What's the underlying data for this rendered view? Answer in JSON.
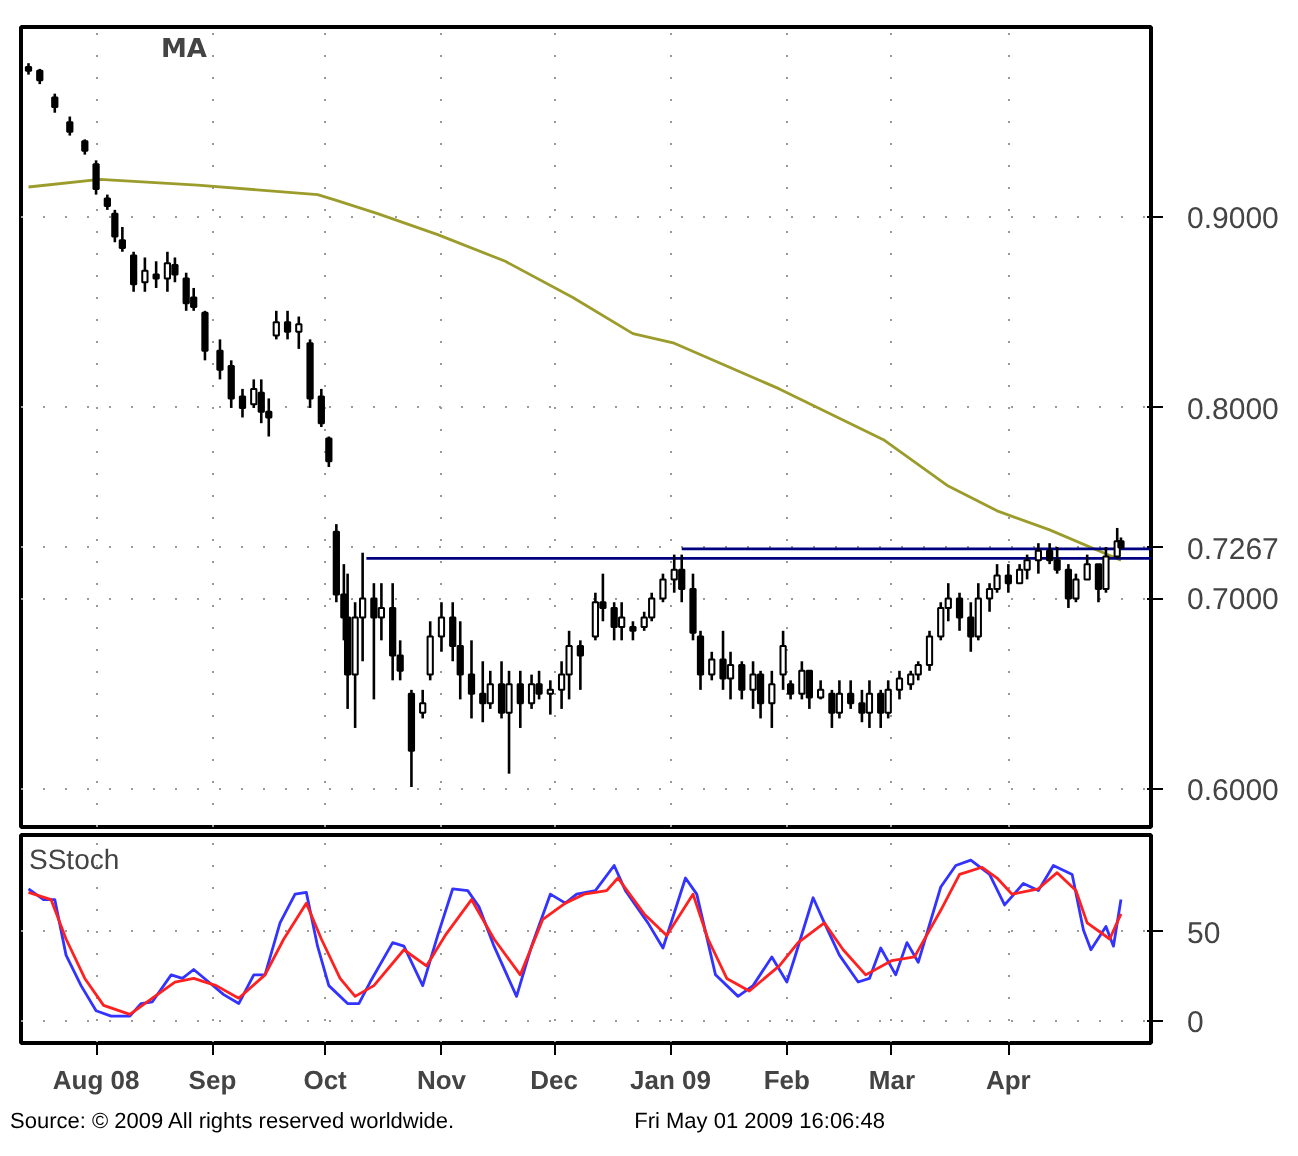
{
  "chart_data": [
    {
      "type": "candlestick",
      "annotations": [
        "MA"
      ],
      "xlim": [
        "2008-07-12",
        "2009-05-09"
      ],
      "xticks": [
        {
          "value": "2008-08-01",
          "label": null
        },
        {
          "value": "2008-09-01",
          "label": null
        },
        {
          "value": "2008-10-01",
          "label": null
        },
        {
          "value": "2008-11-01",
          "label": null
        },
        {
          "value": "2008-12-01",
          "label": null
        },
        {
          "value": "2009-01-01",
          "label": null
        },
        {
          "value": "2009-02-01",
          "label": null
        },
        {
          "value": "2009-03-01",
          "label": null
        },
        {
          "value": "2009-04-01",
          "label": null
        }
      ],
      "ylim": [
        0.58,
        1.0
      ],
      "yticks": [
        {
          "value": 0.6,
          "label": "0.6000"
        },
        {
          "value": 0.7,
          "label": "0.7000"
        },
        {
          "value": 0.7267,
          "label": "0.7267"
        },
        {
          "value": 0.8,
          "label": "0.8000"
        },
        {
          "value": 0.9,
          "label": "0.9000"
        }
      ],
      "tick_labels": "y",
      "grid": true,
      "color": "#000000",
      "x": [
        "2008-07-14",
        "2008-07-17",
        "2008-07-21",
        "2008-07-25",
        "2008-07-29",
        "2008-08-01",
        "2008-08-04",
        "2008-08-06",
        "2008-08-08",
        "2008-08-11",
        "2008-08-14",
        "2008-08-17",
        "2008-08-20",
        "2008-08-22",
        "2008-08-25",
        "2008-08-27",
        "2008-08-30",
        "2008-09-03",
        "2008-09-06",
        "2008-09-09",
        "2008-09-12",
        "2008-09-14",
        "2008-09-16",
        "2008-09-18",
        "2008-09-21",
        "2008-09-24",
        "2008-09-27",
        "2008-09-30",
        "2008-10-02",
        "2008-10-04",
        "2008-10-06",
        "2008-10-07",
        "2008-10-09",
        "2008-10-11",
        "2008-10-14",
        "2008-10-16",
        "2008-10-19",
        "2008-10-21",
        "2008-10-24",
        "2008-10-27",
        "2008-10-29",
        "2008-11-01",
        "2008-11-04",
        "2008-11-06",
        "2008-11-09",
        "2008-11-12",
        "2008-11-14",
        "2008-11-17",
        "2008-11-19",
        "2008-11-22",
        "2008-11-25",
        "2008-11-27",
        "2008-11-30",
        "2008-12-03",
        "2008-12-05",
        "2008-12-08",
        "2008-12-12",
        "2008-12-14",
        "2008-12-17",
        "2008-12-19",
        "2008-12-22",
        "2008-12-25",
        "2008-12-27",
        "2008-12-30",
        "2009-01-02",
        "2009-01-04",
        "2009-01-07",
        "2009-01-09",
        "2009-01-12",
        "2009-01-15",
        "2009-01-17",
        "2009-01-20",
        "2009-01-23",
        "2009-01-25",
        "2009-01-28",
        "2009-01-31",
        "2009-02-02",
        "2009-02-05",
        "2009-02-07",
        "2009-02-10",
        "2009-02-13",
        "2009-02-15",
        "2009-02-18",
        "2009-02-21",
        "2009-02-23",
        "2009-02-26",
        "2009-02-28",
        "2009-03-03",
        "2009-03-06",
        "2009-03-08",
        "2009-03-11",
        "2009-03-14",
        "2009-03-16",
        "2009-03-19",
        "2009-03-22",
        "2009-03-24",
        "2009-03-27",
        "2009-03-29",
        "2009-04-01",
        "2009-04-04",
        "2009-04-06",
        "2009-04-09",
        "2009-04-12",
        "2009-04-14",
        "2009-04-17",
        "2009-04-19",
        "2009-04-22",
        "2009-04-25",
        "2009-04-27",
        "2009-04-30",
        "2009-05-01"
      ],
      "ohlc": [
        [
          0.979,
          0.981,
          0.975,
          0.977
        ],
        [
          0.977,
          0.978,
          0.97,
          0.972
        ],
        [
          0.963,
          0.965,
          0.955,
          0.958
        ],
        [
          0.95,
          0.953,
          0.943,
          0.945
        ],
        [
          0.94,
          0.941,
          0.933,
          0.935
        ],
        [
          0.928,
          0.93,
          0.912,
          0.915
        ],
        [
          0.91,
          0.912,
          0.904,
          0.906
        ],
        [
          0.902,
          0.904,
          0.887,
          0.89
        ],
        [
          0.888,
          0.895,
          0.882,
          0.884
        ],
        [
          0.88,
          0.882,
          0.861,
          0.865
        ],
        [
          0.866,
          0.879,
          0.861,
          0.872
        ],
        [
          0.87,
          0.877,
          0.863,
          0.868
        ],
        [
          0.868,
          0.882,
          0.861,
          0.876
        ],
        [
          0.875,
          0.879,
          0.866,
          0.87
        ],
        [
          0.868,
          0.871,
          0.851,
          0.855
        ],
        [
          0.858,
          0.863,
          0.851,
          0.853
        ],
        [
          0.85,
          0.851,
          0.825,
          0.83
        ],
        [
          0.83,
          0.836,
          0.815,
          0.82
        ],
        [
          0.822,
          0.825,
          0.8,
          0.805
        ],
        [
          0.806,
          0.81,
          0.795,
          0.8
        ],
        [
          0.802,
          0.815,
          0.8,
          0.81
        ],
        [
          0.808,
          0.815,
          0.792,
          0.798
        ],
        [
          0.798,
          0.805,
          0.785,
          0.795
        ],
        [
          0.838,
          0.851,
          0.836,
          0.845
        ],
        [
          0.845,
          0.851,
          0.836,
          0.84
        ],
        [
          0.84,
          0.848,
          0.831,
          0.844
        ],
        [
          0.834,
          0.836,
          0.8,
          0.805
        ],
        [
          0.806,
          0.81,
          0.79,
          0.792
        ],
        [
          0.784,
          0.785,
          0.769,
          0.772
        ],
        [
          0.735,
          0.739,
          0.698,
          0.702
        ],
        [
          0.702,
          0.718,
          0.678,
          0.69
        ],
        [
          0.69,
          0.713,
          0.642,
          0.66
        ],
        [
          0.66,
          0.698,
          0.632,
          0.69
        ],
        [
          0.69,
          0.724,
          0.667,
          0.7
        ],
        [
          0.7,
          0.708,
          0.647,
          0.69
        ],
        [
          0.69,
          0.708,
          0.678,
          0.695
        ],
        [
          0.695,
          0.708,
          0.657,
          0.67
        ],
        [
          0.67,
          0.678,
          0.657,
          0.662
        ],
        [
          0.65,
          0.652,
          0.601,
          0.62
        ],
        [
          0.64,
          0.652,
          0.637,
          0.645
        ],
        [
          0.66,
          0.688,
          0.657,
          0.68
        ],
        [
          0.68,
          0.698,
          0.672,
          0.69
        ],
        [
          0.69,
          0.698,
          0.667,
          0.675
        ],
        [
          0.675,
          0.688,
          0.647,
          0.66
        ],
        [
          0.66,
          0.678,
          0.637,
          0.65
        ],
        [
          0.65,
          0.667,
          0.635,
          0.645
        ],
        [
          0.645,
          0.662,
          0.642,
          0.655
        ],
        [
          0.655,
          0.667,
          0.637,
          0.64
        ],
        [
          0.64,
          0.662,
          0.608,
          0.655
        ],
        [
          0.655,
          0.662,
          0.632,
          0.645
        ],
        [
          0.645,
          0.66,
          0.642,
          0.655
        ],
        [
          0.655,
          0.662,
          0.647,
          0.65
        ],
        [
          0.65,
          0.657,
          0.639,
          0.652
        ],
        [
          0.652,
          0.667,
          0.642,
          0.66
        ],
        [
          0.66,
          0.683,
          0.647,
          0.675
        ],
        [
          0.675,
          0.678,
          0.652,
          0.67
        ],
        [
          0.68,
          0.703,
          0.678,
          0.698
        ],
        [
          0.698,
          0.713,
          0.688,
          0.695
        ],
        [
          0.695,
          0.698,
          0.678,
          0.685
        ],
        [
          0.685,
          0.698,
          0.678,
          0.69
        ],
        [
          0.685,
          0.688,
          0.678,
          0.683
        ],
        [
          0.685,
          0.693,
          0.683,
          0.69
        ],
        [
          0.69,
          0.703,
          0.688,
          0.7
        ],
        [
          0.7,
          0.713,
          0.698,
          0.71
        ],
        [
          0.71,
          0.723,
          0.703,
          0.715
        ],
        [
          0.715,
          0.723,
          0.698,
          0.705
        ],
        [
          0.705,
          0.713,
          0.678,
          0.682
        ],
        [
          0.68,
          0.683,
          0.652,
          0.66
        ],
        [
          0.66,
          0.672,
          0.657,
          0.668
        ],
        [
          0.668,
          0.683,
          0.652,
          0.658
        ],
        [
          0.658,
          0.672,
          0.647,
          0.665
        ],
        [
          0.665,
          0.667,
          0.647,
          0.652
        ],
        [
          0.652,
          0.667,
          0.642,
          0.66
        ],
        [
          0.66,
          0.662,
          0.637,
          0.645
        ],
        [
          0.645,
          0.662,
          0.632,
          0.655
        ],
        [
          0.66,
          0.683,
          0.652,
          0.675
        ],
        [
          0.655,
          0.657,
          0.647,
          0.65
        ],
        [
          0.65,
          0.667,
          0.647,
          0.662
        ],
        [
          0.662,
          0.662,
          0.642,
          0.648
        ],
        [
          0.648,
          0.657,
          0.647,
          0.652
        ],
        [
          0.65,
          0.652,
          0.632,
          0.64
        ],
        [
          0.64,
          0.657,
          0.637,
          0.65
        ],
        [
          0.65,
          0.657,
          0.642,
          0.645
        ],
        [
          0.645,
          0.652,
          0.635,
          0.64
        ],
        [
          0.64,
          0.657,
          0.632,
          0.65
        ],
        [
          0.65,
          0.652,
          0.632,
          0.64
        ],
        [
          0.64,
          0.657,
          0.637,
          0.652
        ],
        [
          0.652,
          0.662,
          0.647,
          0.658
        ],
        [
          0.655,
          0.662,
          0.652,
          0.66
        ],
        [
          0.66,
          0.667,
          0.657,
          0.665
        ],
        [
          0.665,
          0.683,
          0.662,
          0.68
        ],
        [
          0.68,
          0.698,
          0.678,
          0.695
        ],
        [
          0.695,
          0.708,
          0.688,
          0.7
        ],
        [
          0.7,
          0.703,
          0.683,
          0.69
        ],
        [
          0.69,
          0.698,
          0.672,
          0.68
        ],
        [
          0.68,
          0.708,
          0.678,
          0.7
        ],
        [
          0.7,
          0.708,
          0.693,
          0.705
        ],
        [
          0.705,
          0.718,
          0.703,
          0.712
        ],
        [
          0.712,
          0.718,
          0.703,
          0.708
        ],
        [
          0.708,
          0.718,
          0.708,
          0.715
        ],
        [
          0.715,
          0.723,
          0.71,
          0.72
        ],
        [
          0.72,
          0.729,
          0.713,
          0.725
        ],
        [
          0.725,
          0.729,
          0.718,
          0.72
        ],
        [
          0.72,
          0.727,
          0.713,
          0.715
        ],
        [
          0.715,
          0.718,
          0.695,
          0.7
        ],
        [
          0.7,
          0.713,
          0.698,
          0.71
        ],
        [
          0.71,
          0.723,
          0.71,
          0.718
        ],
        [
          0.718,
          0.718,
          0.698,
          0.705
        ],
        [
          0.705,
          0.727,
          0.703,
          0.722
        ],
        [
          0.722,
          0.737,
          0.721,
          0.73
        ],
        [
          0.73,
          0.732,
          0.726,
          0.7267
        ]
      ],
      "series": [
        {
          "type": "line",
          "color": "#9c9c2c",
          "x": [
            "2008-07-14",
            "2008-08-02",
            "2008-08-28",
            "2008-09-29",
            "2008-10-04",
            "2008-10-15",
            "2008-10-31",
            "2008-11-18",
            "2008-12-06",
            "2008-12-22",
            "2009-01-02",
            "2009-01-30",
            "2009-02-27",
            "2009-03-16",
            "2009-03-29",
            "2009-04-12",
            "2009-05-01"
          ],
          "values": [
            0.916,
            0.92,
            0.917,
            0.912,
            0.909,
            0.902,
            0.891,
            0.877,
            0.858,
            0.839,
            0.834,
            0.81,
            0.783,
            0.759,
            0.746,
            0.736,
            0.72
          ]
        },
        {
          "type": "line",
          "color": "#000080",
          "x": [
            "2008-10-12",
            "2009-05-09"
          ],
          "values": [
            0.721,
            0.721
          ]
        },
        {
          "type": "line",
          "color": "#000080",
          "x": [
            "2009-01-04",
            "2009-05-09"
          ],
          "values": [
            0.726,
            0.726
          ]
        }
      ]
    },
    {
      "type": "line",
      "annotations": [
        "SStoch",
        "Source: © 2009 All rights reserved worldwide.",
        "Fri May 01 2009 16:06:48"
      ],
      "xlim": [
        "2008-07-12",
        "2009-05-09"
      ],
      "xticks": [
        {
          "value": "2008-08-01",
          "label": "Aug 08"
        },
        {
          "value": "2008-09-01",
          "label": "Sep"
        },
        {
          "value": "2008-10-01",
          "label": "Oct"
        },
        {
          "value": "2008-11-01",
          "label": "Nov"
        },
        {
          "value": "2008-12-01",
          "label": "Dec"
        },
        {
          "value": "2009-01-01",
          "label": "Jan 09"
        },
        {
          "value": "2009-02-01",
          "label": "Feb"
        },
        {
          "value": "2009-03-01",
          "label": "Mar"
        },
        {
          "value": "2009-04-01",
          "label": "Apr"
        }
      ],
      "ylim": [
        -12,
        104
      ],
      "yticks": [
        0,
        50
      ],
      "grid": true,
      "series": [
        {
          "color": "#3333ff",
          "x": [
            "2008-07-14",
            "2008-07-18",
            "2008-07-21",
            "2008-07-24",
            "2008-07-28",
            "2008-08-01",
            "2008-08-05",
            "2008-08-10",
            "2008-08-13",
            "2008-08-16",
            "2008-08-21",
            "2008-08-24",
            "2008-08-27",
            "2008-08-31",
            "2008-09-04",
            "2008-09-08",
            "2008-09-12",
            "2008-09-15",
            "2008-09-19",
            "2008-09-23",
            "2008-09-26",
            "2008-09-29",
            "2008-10-02",
            "2008-10-07",
            "2008-10-10",
            "2008-10-13",
            "2008-10-19",
            "2008-10-22",
            "2008-10-27",
            "2008-10-31",
            "2008-11-04",
            "2008-11-08",
            "2008-11-11",
            "2008-11-15",
            "2008-11-21",
            "2008-11-25",
            "2008-11-30",
            "2008-12-04",
            "2008-12-07",
            "2008-12-12",
            "2008-12-17",
            "2008-12-20",
            "2008-12-26",
            "2008-12-30",
            "2009-01-05",
            "2009-01-08",
            "2009-01-13",
            "2009-01-19",
            "2009-01-23",
            "2009-01-28",
            "2009-02-01",
            "2009-02-03",
            "2009-02-08",
            "2009-02-11",
            "2009-02-15",
            "2009-02-20",
            "2009-02-23",
            "2009-02-26",
            "2009-03-02",
            "2009-03-05",
            "2009-03-08",
            "2009-03-14",
            "2009-03-18",
            "2009-03-22",
            "2009-03-27",
            "2009-03-31",
            "2009-04-05",
            "2009-04-09",
            "2009-04-13",
            "2009-04-18",
            "2009-04-21",
            "2009-04-23",
            "2009-04-27",
            "2009-04-29",
            "2009-05-01"
          ],
          "values": [
            74,
            68,
            68,
            37,
            20,
            6,
            3,
            3,
            10,
            11,
            26,
            24,
            29,
            22,
            15,
            10,
            26,
            26,
            55,
            71,
            72,
            42,
            20,
            10,
            10,
            22,
            44,
            42,
            20,
            48,
            74,
            73,
            64,
            42,
            14,
            42,
            71,
            66,
            71,
            73,
            87,
            73,
            55,
            41,
            80,
            71,
            26,
            14,
            20,
            36,
            22,
            35,
            69,
            55,
            37,
            22,
            24,
            41,
            26,
            44,
            33,
            75,
            87,
            90,
            82,
            65,
            77,
            73,
            87,
            82,
            51,
            40,
            53,
            42,
            68
          ]
        },
        {
          "color": "#ff2020",
          "x": [
            "2008-07-14",
            "2008-07-20",
            "2008-07-24",
            "2008-07-29",
            "2008-08-03",
            "2008-08-10",
            "2008-08-16",
            "2008-08-22",
            "2008-08-27",
            "2008-09-02",
            "2008-09-08",
            "2008-09-15",
            "2008-09-20",
            "2008-09-26",
            "2008-09-30",
            "2008-10-05",
            "2008-10-09",
            "2008-10-14",
            "2008-10-22",
            "2008-10-28",
            "2008-11-02",
            "2008-11-09",
            "2008-11-15",
            "2008-11-22",
            "2008-11-28",
            "2008-12-04",
            "2008-12-09",
            "2008-12-15",
            "2008-12-18",
            "2008-12-25",
            "2008-12-31",
            "2009-01-07",
            "2009-01-11",
            "2009-01-16",
            "2009-01-22",
            "2009-01-30",
            "2009-02-04",
            "2009-02-11",
            "2009-02-16",
            "2009-02-22",
            "2009-03-01",
            "2009-03-07",
            "2009-03-14",
            "2009-03-19",
            "2009-03-25",
            "2009-03-29",
            "2009-04-02",
            "2009-04-09",
            "2009-04-14",
            "2009-04-19",
            "2009-04-22",
            "2009-04-28",
            "2009-05-01"
          ],
          "values": [
            72,
            68,
            46,
            24,
            9,
            4,
            13,
            22,
            24,
            20,
            13,
            26,
            46,
            66,
            46,
            24,
            14,
            20,
            40,
            31,
            48,
            68,
            46,
            26,
            57,
            66,
            71,
            73,
            80,
            60,
            48,
            71,
            46,
            24,
            17,
            31,
            44,
            55,
            40,
            26,
            34,
            36,
            62,
            82,
            86,
            80,
            71,
            74,
            83,
            73,
            55,
            46,
            60
          ]
        }
      ]
    }
  ]
}
